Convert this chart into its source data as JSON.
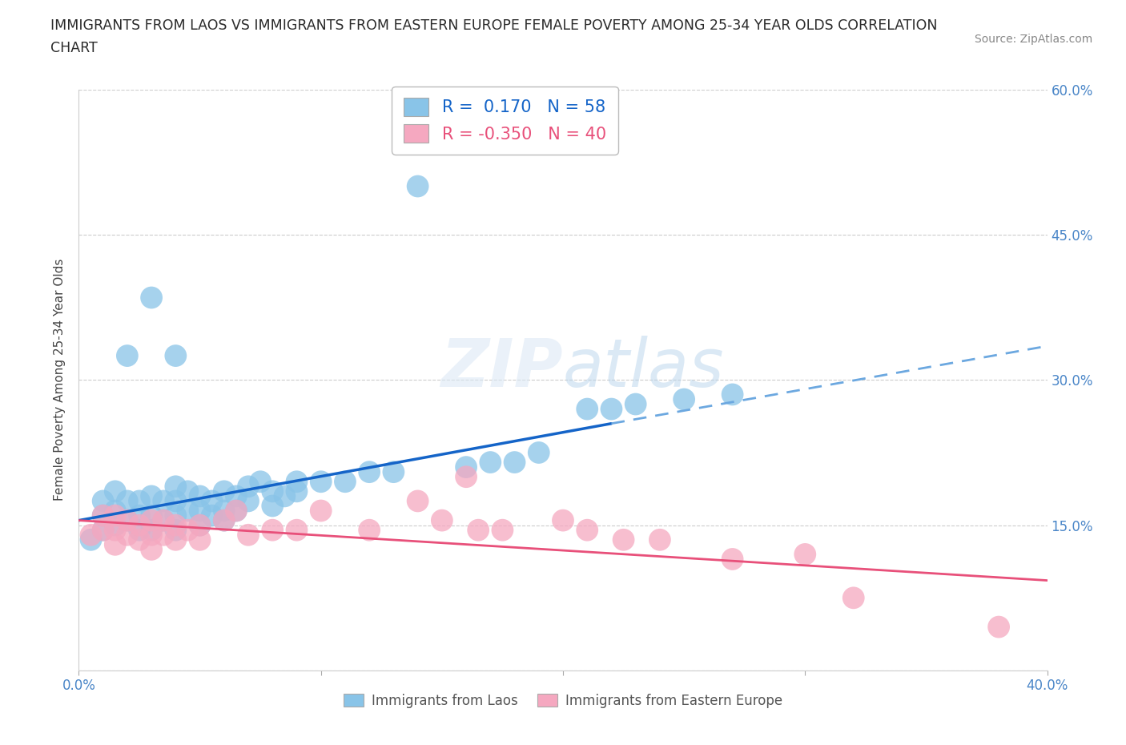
{
  "title_line1": "IMMIGRANTS FROM LAOS VS IMMIGRANTS FROM EASTERN EUROPE FEMALE POVERTY AMONG 25-34 YEAR OLDS CORRELATION",
  "title_line2": "CHART",
  "source_text": "Source: ZipAtlas.com",
  "ylabel": "Female Poverty Among 25-34 Year Olds",
  "xlim": [
    0.0,
    0.4
  ],
  "ylim": [
    0.0,
    0.6
  ],
  "xtick_vals": [
    0.0,
    0.1,
    0.2,
    0.3,
    0.4
  ],
  "xticklabels": [
    "0.0%",
    "",
    "",
    "",
    "40.0%"
  ],
  "ytick_vals": [
    0.0,
    0.15,
    0.3,
    0.45,
    0.6
  ],
  "right_yticklabels": [
    "",
    "15.0%",
    "30.0%",
    "45.0%",
    "60.0%"
  ],
  "blue_R": 0.17,
  "blue_N": 58,
  "pink_R": -0.35,
  "pink_N": 40,
  "blue_color": "#89C4E8",
  "pink_color": "#F5A8C0",
  "blue_line_color": "#1464C8",
  "pink_line_color": "#E8507A",
  "blue_line_dashed_color": "#6CA8E0",
  "legend_label_blue": "Immigrants from Laos",
  "legend_label_pink": "Immigrants from Eastern Europe",
  "blue_trend_start": 0.155,
  "blue_trend_mid_x": 0.22,
  "blue_trend_mid_y": 0.255,
  "blue_trend_end_x": 0.4,
  "blue_trend_end_y": 0.335,
  "pink_trend_start": 0.155,
  "pink_trend_end": 0.093,
  "blue_x": [
    0.005,
    0.01,
    0.01,
    0.01,
    0.015,
    0.015,
    0.015,
    0.02,
    0.02,
    0.025,
    0.025,
    0.025,
    0.03,
    0.03,
    0.03,
    0.035,
    0.035,
    0.04,
    0.04,
    0.04,
    0.04,
    0.045,
    0.045,
    0.05,
    0.05,
    0.05,
    0.055,
    0.055,
    0.06,
    0.06,
    0.06,
    0.065,
    0.065,
    0.07,
    0.07,
    0.075,
    0.08,
    0.08,
    0.085,
    0.09,
    0.09,
    0.1,
    0.11,
    0.12,
    0.13,
    0.14,
    0.16,
    0.17,
    0.18,
    0.19,
    0.21,
    0.22,
    0.23,
    0.25,
    0.27,
    0.03,
    0.04,
    0.02
  ],
  "blue_y": [
    0.135,
    0.145,
    0.16,
    0.175,
    0.15,
    0.165,
    0.185,
    0.155,
    0.175,
    0.145,
    0.16,
    0.175,
    0.145,
    0.16,
    0.18,
    0.155,
    0.175,
    0.145,
    0.16,
    0.175,
    0.19,
    0.165,
    0.185,
    0.15,
    0.165,
    0.18,
    0.16,
    0.175,
    0.155,
    0.165,
    0.185,
    0.165,
    0.18,
    0.175,
    0.19,
    0.195,
    0.17,
    0.185,
    0.18,
    0.185,
    0.195,
    0.195,
    0.195,
    0.205,
    0.205,
    0.5,
    0.21,
    0.215,
    0.215,
    0.225,
    0.27,
    0.27,
    0.275,
    0.28,
    0.285,
    0.385,
    0.325,
    0.325
  ],
  "pink_x": [
    0.005,
    0.01,
    0.01,
    0.015,
    0.015,
    0.015,
    0.02,
    0.02,
    0.025,
    0.025,
    0.03,
    0.03,
    0.03,
    0.035,
    0.035,
    0.04,
    0.04,
    0.045,
    0.05,
    0.05,
    0.06,
    0.065,
    0.07,
    0.08,
    0.09,
    0.1,
    0.12,
    0.14,
    0.15,
    0.16,
    0.165,
    0.175,
    0.2,
    0.21,
    0.225,
    0.24,
    0.27,
    0.3,
    0.32,
    0.38
  ],
  "pink_y": [
    0.14,
    0.145,
    0.16,
    0.13,
    0.145,
    0.16,
    0.14,
    0.155,
    0.135,
    0.15,
    0.125,
    0.14,
    0.155,
    0.14,
    0.155,
    0.135,
    0.15,
    0.145,
    0.135,
    0.15,
    0.155,
    0.165,
    0.14,
    0.145,
    0.145,
    0.165,
    0.145,
    0.175,
    0.155,
    0.2,
    0.145,
    0.145,
    0.155,
    0.145,
    0.135,
    0.135,
    0.115,
    0.12,
    0.075,
    0.045
  ]
}
